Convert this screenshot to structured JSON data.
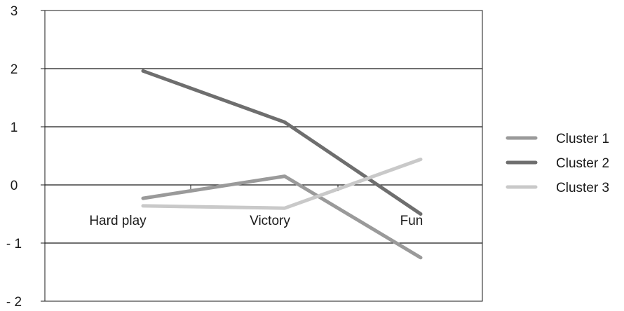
{
  "chart_data": {
    "type": "line",
    "categories": [
      "Hard play",
      "Victory",
      "Fun"
    ],
    "ylim": [
      -2,
      3
    ],
    "yticks": [
      "3",
      "2",
      "1",
      "0",
      "- 1",
      "- 2"
    ],
    "ytick_values": [
      3,
      2,
      1,
      0,
      -1,
      -2
    ],
    "grid": true,
    "legend_position": "right",
    "series": [
      {
        "name": "Cluster 1",
        "values": [
          -0.23,
          0.15,
          -1.25
        ],
        "color": "#9a9a9a"
      },
      {
        "name": "Cluster 2",
        "values": [
          1.96,
          1.08,
          -0.5
        ],
        "color": "#6e6e6e"
      },
      {
        "name": "Cluster 3",
        "values": [
          -0.36,
          -0.4,
          0.44
        ],
        "color": "#c9c9c9"
      }
    ]
  }
}
